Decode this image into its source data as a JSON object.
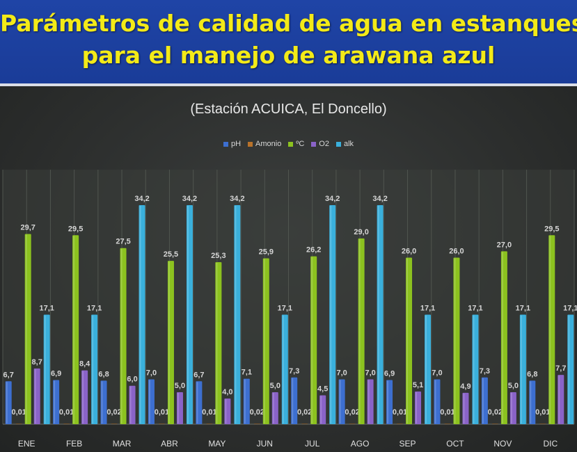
{
  "header": {
    "title_line1": "Parámetros de calidad de agua en estanques",
    "title_line2": "para el manejo de arawana azul"
  },
  "chart_data": {
    "type": "bar",
    "subtitle": "(Estación ACUICA,  El Doncello)",
    "categories": [
      "ENE",
      "FEB",
      "MAR",
      "ABR",
      "MAY",
      "JUN",
      "JUL",
      "AGO",
      "SEP",
      "OCT",
      "NOV",
      "DIC"
    ],
    "series": [
      {
        "name": "pH",
        "color": "#3d6fd0",
        "values": [
          6.7,
          6.9,
          6.8,
          7.0,
          6.7,
          7.1,
          7.3,
          7.0,
          6.9,
          7.0,
          7.3,
          6.8
        ],
        "labels": [
          "6,7",
          "6,9",
          "6,8",
          "7,0",
          "6,7",
          "7,1",
          "7,3",
          "7,0",
          "6,9",
          "7,0",
          "7,3",
          "6,8"
        ]
      },
      {
        "name": "Amonio",
        "color": "#b8722a",
        "values": [
          0.01,
          0.01,
          0.02,
          0.01,
          0.01,
          0.02,
          0.02,
          0.02,
          0.01,
          0.01,
          0.02,
          0.01
        ],
        "labels": [
          "0,01",
          "0,01",
          "0,02",
          "0,01",
          "0,01",
          "0,02",
          "0,02",
          "0,02",
          "0,01",
          "0,01",
          "0,02",
          "0,01"
        ]
      },
      {
        "name": "ºC",
        "color": "#8cc21f",
        "values": [
          29.7,
          29.5,
          27.5,
          25.5,
          25.3,
          25.9,
          26.2,
          29.0,
          26.0,
          26.0,
          27.0,
          29.5
        ],
        "labels": [
          "29,7",
          "29,5",
          "27,5",
          "25,5",
          "25,3",
          "25,9",
          "26,2",
          "29,0",
          "26,0",
          "26,0",
          "27,0",
          "29,5"
        ]
      },
      {
        "name": "O2",
        "color": "#8a63c8",
        "values": [
          8.7,
          8.4,
          6.0,
          5.0,
          4.0,
          5.0,
          4.5,
          7.0,
          5.1,
          4.9,
          5.0,
          7.7
        ],
        "labels": [
          "8,7",
          "8,4",
          "6,0",
          "5,0",
          "4,0",
          "5,0",
          "4,5",
          "7,0",
          "5,1",
          "4,9",
          "5,0",
          "7,7"
        ]
      },
      {
        "name": "alk",
        "color": "#3ab0dc",
        "values": [
          17.1,
          17.1,
          34.2,
          34.2,
          34.2,
          17.1,
          34.2,
          34.2,
          17.1,
          17.1,
          17.1,
          17.1
        ],
        "labels": [
          "17,1",
          "17,1",
          "34,2",
          "34,2",
          "34,2",
          "17,1",
          "34,2",
          "34,2",
          "17,1",
          "17,1",
          "17,1",
          "17,1"
        ]
      }
    ],
    "ylim": [
      0,
      34.2
    ],
    "grid": "vertical",
    "legend_position": "top-center"
  }
}
